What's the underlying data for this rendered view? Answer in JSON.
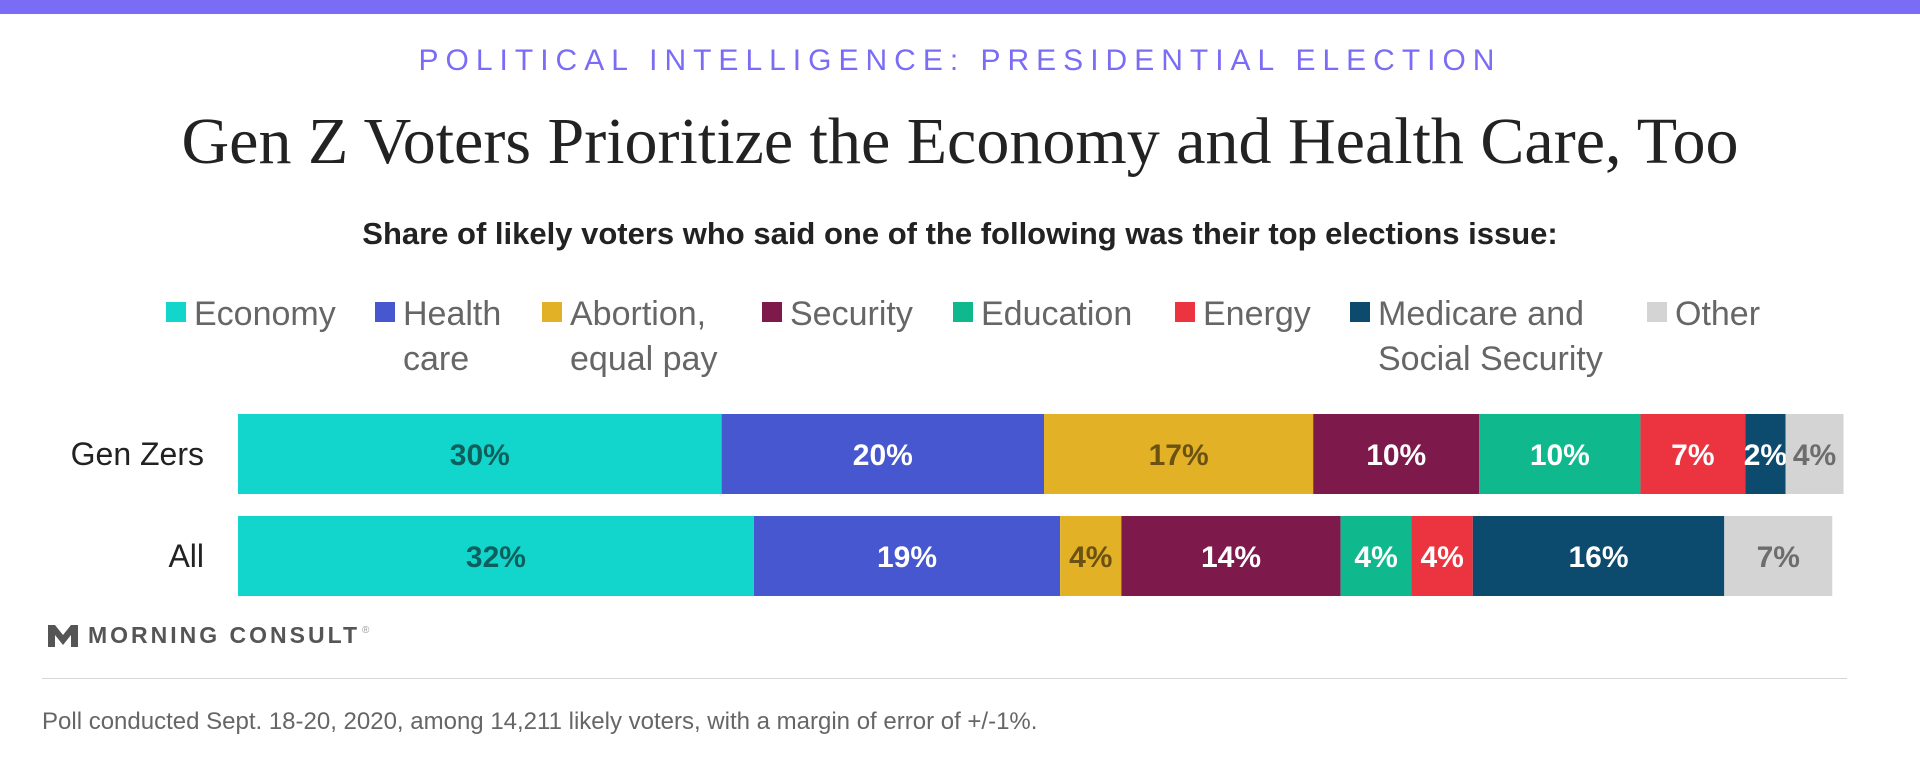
{
  "header": {
    "kicker": "POLITICAL INTELLIGENCE: PRESIDENTIAL ELECTION",
    "title": "Gen Z Voters Prioritize the Economy and Health Care, Too",
    "subtitle": "Share of likely voters who said one of the following was their top elections issue:"
  },
  "legend": {
    "items": [
      {
        "line1": "Economy",
        "line2": "",
        "color": "#12d6cc"
      },
      {
        "line1": "Health",
        "line2": "care",
        "color": "#4657d0"
      },
      {
        "line1": "Abortion,",
        "line2": "equal pay",
        "color": "#e3b126"
      },
      {
        "line1": "Security",
        "line2": "",
        "color": "#7d1a4b"
      },
      {
        "line1": "Education",
        "line2": "",
        "color": "#10b98d"
      },
      {
        "line1": "Energy",
        "line2": "",
        "color": "#ec3440"
      },
      {
        "line1": "Medicare and",
        "line2": "Social Security",
        "color": "#0c4a6e"
      },
      {
        "line1": "Other",
        "line2": "",
        "color": "#d4d4d4"
      }
    ]
  },
  "chart_data": {
    "type": "bar",
    "orientation": "horizontal-stacked",
    "title": "Gen Z Voters Prioritize the Economy and Health Care, Too",
    "subtitle": "Share of likely voters who said one of the following was their top elections issue:",
    "categories": [
      "Gen Zers",
      "All"
    ],
    "series": [
      {
        "name": "Economy",
        "values": [
          30,
          32
        ],
        "labels": [
          "30%",
          "32%"
        ],
        "color": "#12d6cc",
        "label_color": "#0e5f5c"
      },
      {
        "name": "Health care",
        "values": [
          20,
          19
        ],
        "labels": [
          "20%",
          "19%"
        ],
        "color": "#4657d0",
        "label_color": "#ffffff"
      },
      {
        "name": "Abortion, equal pay",
        "values": [
          16.7,
          3.8
        ],
        "labels": [
          "17%",
          "4%"
        ],
        "color": "#e3b126",
        "label_color": "#6b5212"
      },
      {
        "name": "Security",
        "values": [
          10.3,
          13.6
        ],
        "labels": [
          "10%",
          "14%"
        ],
        "color": "#7d1a4b",
        "label_color": "#ffffff"
      },
      {
        "name": "Education",
        "values": [
          10,
          4.4
        ],
        "labels": [
          "10%",
          "4%"
        ],
        "color": "#10b98d",
        "label_color": "#ffffff"
      },
      {
        "name": "Energy",
        "values": [
          6.5,
          3.8
        ],
        "labels": [
          "7%",
          "4%"
        ],
        "color": "#ec3440",
        "label_color": "#ffffff"
      },
      {
        "name": "Medicare and Social Security",
        "values": [
          2.5,
          15.6
        ],
        "labels": [
          "2%",
          "16%"
        ],
        "color": "#0c4a6e",
        "label_color": "#ffffff"
      },
      {
        "name": "Other",
        "values": [
          3.6,
          6.7
        ],
        "labels": [
          "4%",
          "7%"
        ],
        "color": "#d4d4d4",
        "label_color": "#6d6d6d"
      }
    ],
    "xlim": [
      0,
      100
    ],
    "grid": false,
    "legend_position": "top"
  },
  "branding": {
    "name": "MORNING CONSULT",
    "mark": "®"
  },
  "footnote": "Poll conducted Sept. 18-20, 2020, among 14,211 likely voters, with a margin of error of +/-1%."
}
